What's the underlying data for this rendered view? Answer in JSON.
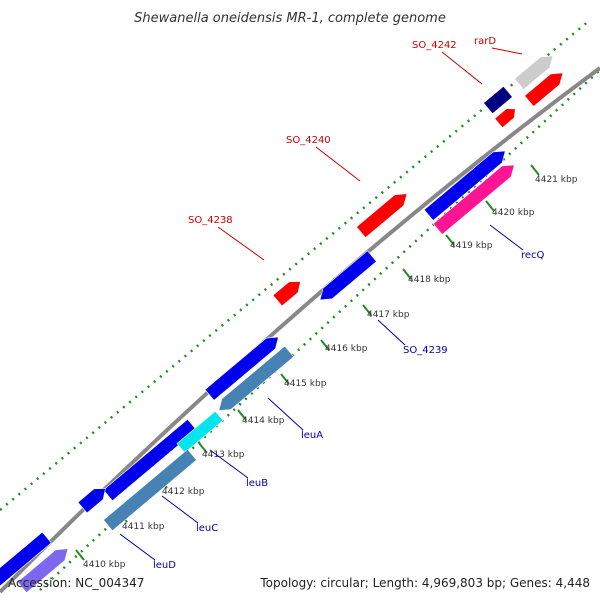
{
  "title": "Shewanella oneidensis MR-1, complete genome",
  "footer": {
    "accession": "Accession: NC_004347",
    "summary": "Topology: circular; Length: 4,969,803 bp; Genes: 4,448"
  },
  "colors": {
    "backbone": "#888888",
    "dots": "#228B22",
    "forward_label": "#cc0000",
    "reverse_label": "#0000aa"
  },
  "ticks": [
    {
      "label": "4410 kbp"
    },
    {
      "label": "4411 kbp"
    },
    {
      "label": "4412 kbp"
    },
    {
      "label": "4413 kbp"
    },
    {
      "label": "4414 kbp"
    },
    {
      "label": "4415 kbp"
    },
    {
      "label": "4416 kbp"
    },
    {
      "label": "4417 kbp"
    },
    {
      "label": "4418 kbp"
    },
    {
      "label": "4419 kbp"
    },
    {
      "label": "4420 kbp"
    },
    {
      "label": "4421 kbp"
    }
  ],
  "forward_labels": [
    {
      "text": "rarD"
    },
    {
      "text": "SO_4242"
    },
    {
      "text": "SO_4240"
    },
    {
      "text": "SO_4238"
    }
  ],
  "reverse_labels": [
    {
      "text": "recQ"
    },
    {
      "text": "SO_4239"
    },
    {
      "text": "leuA"
    },
    {
      "text": "leuB"
    },
    {
      "text": "leuC"
    },
    {
      "text": "leuD"
    }
  ],
  "gene_colors": {
    "red": "#ff0000",
    "blue": "#0000ee",
    "steel": "#4682b4",
    "cyan": "#00e5ee",
    "navy": "#000080",
    "gray": "#cccccc",
    "pink": "#ff1493",
    "lavender": "#7b68ee"
  }
}
